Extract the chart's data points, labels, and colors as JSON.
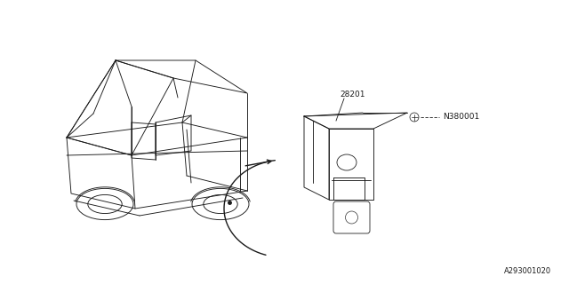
{
  "bg_color": "#ffffff",
  "line_color": "#1a1a1a",
  "part_label_1": "28201",
  "part_label_2": "N380001",
  "diagram_code": "A293001020",
  "font_size_labels": 6.5,
  "font_size_code": 6.0
}
